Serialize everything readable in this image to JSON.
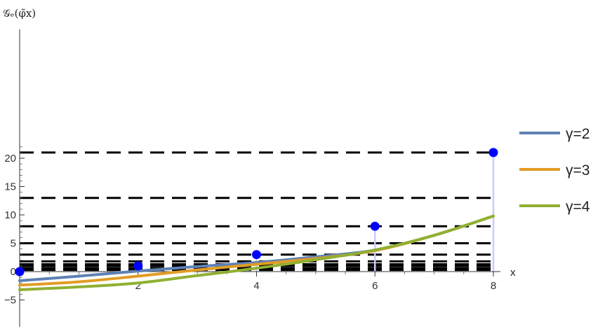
{
  "chart_data": {
    "type": "line",
    "xlabel": "x",
    "ylabel": "𝒢ₑ(φ̃x)",
    "xlim": [
      0,
      8
    ],
    "ylim": [
      -5,
      22
    ],
    "x_ticks": [
      2,
      4,
      6,
      8
    ],
    "y_ticks": [
      -5,
      0,
      5,
      10,
      15,
      20
    ],
    "x_tick_labels": [
      "2",
      "4",
      "6",
      "8"
    ],
    "y_tick_labels": [
      "−5",
      "0",
      "5",
      "10",
      "15",
      "20"
    ],
    "legend_position": "right",
    "series": [
      {
        "name": "γ=2",
        "color": "#5E81B5",
        "x": [
          0,
          1,
          2,
          3,
          4,
          5,
          6,
          7,
          8
        ],
        "y": [
          -1.6,
          -0.8,
          0.1,
          0.9,
          1.6,
          2.6,
          3.8,
          6.4,
          9.8
        ]
      },
      {
        "name": "γ=3",
        "color": "#E19C24",
        "x": [
          0,
          1,
          2,
          3,
          4,
          5,
          6,
          7,
          8
        ],
        "y": [
          -2.4,
          -1.8,
          -0.8,
          0.3,
          1.3,
          2.3,
          3.7,
          6.4,
          9.8
        ]
      },
      {
        "name": "γ=4",
        "color": "#8FB032",
        "x": [
          0,
          1,
          2,
          3,
          4,
          5,
          6,
          7,
          8
        ],
        "y": [
          -3.2,
          -2.7,
          -2.0,
          -0.7,
          0.6,
          2.1,
          3.8,
          6.4,
          9.8
        ]
      }
    ],
    "points": {
      "color": "#0000FF",
      "stem_color": "#C8CCFF",
      "x": [
        0,
        2,
        4,
        6,
        8
      ],
      "y": [
        0,
        1,
        3,
        8,
        21
      ]
    },
    "dashed_levels": {
      "color": "#000000",
      "y": [
        0.3,
        0.6,
        1,
        1.3,
        1.8,
        3,
        5,
        8,
        13,
        21
      ]
    }
  }
}
